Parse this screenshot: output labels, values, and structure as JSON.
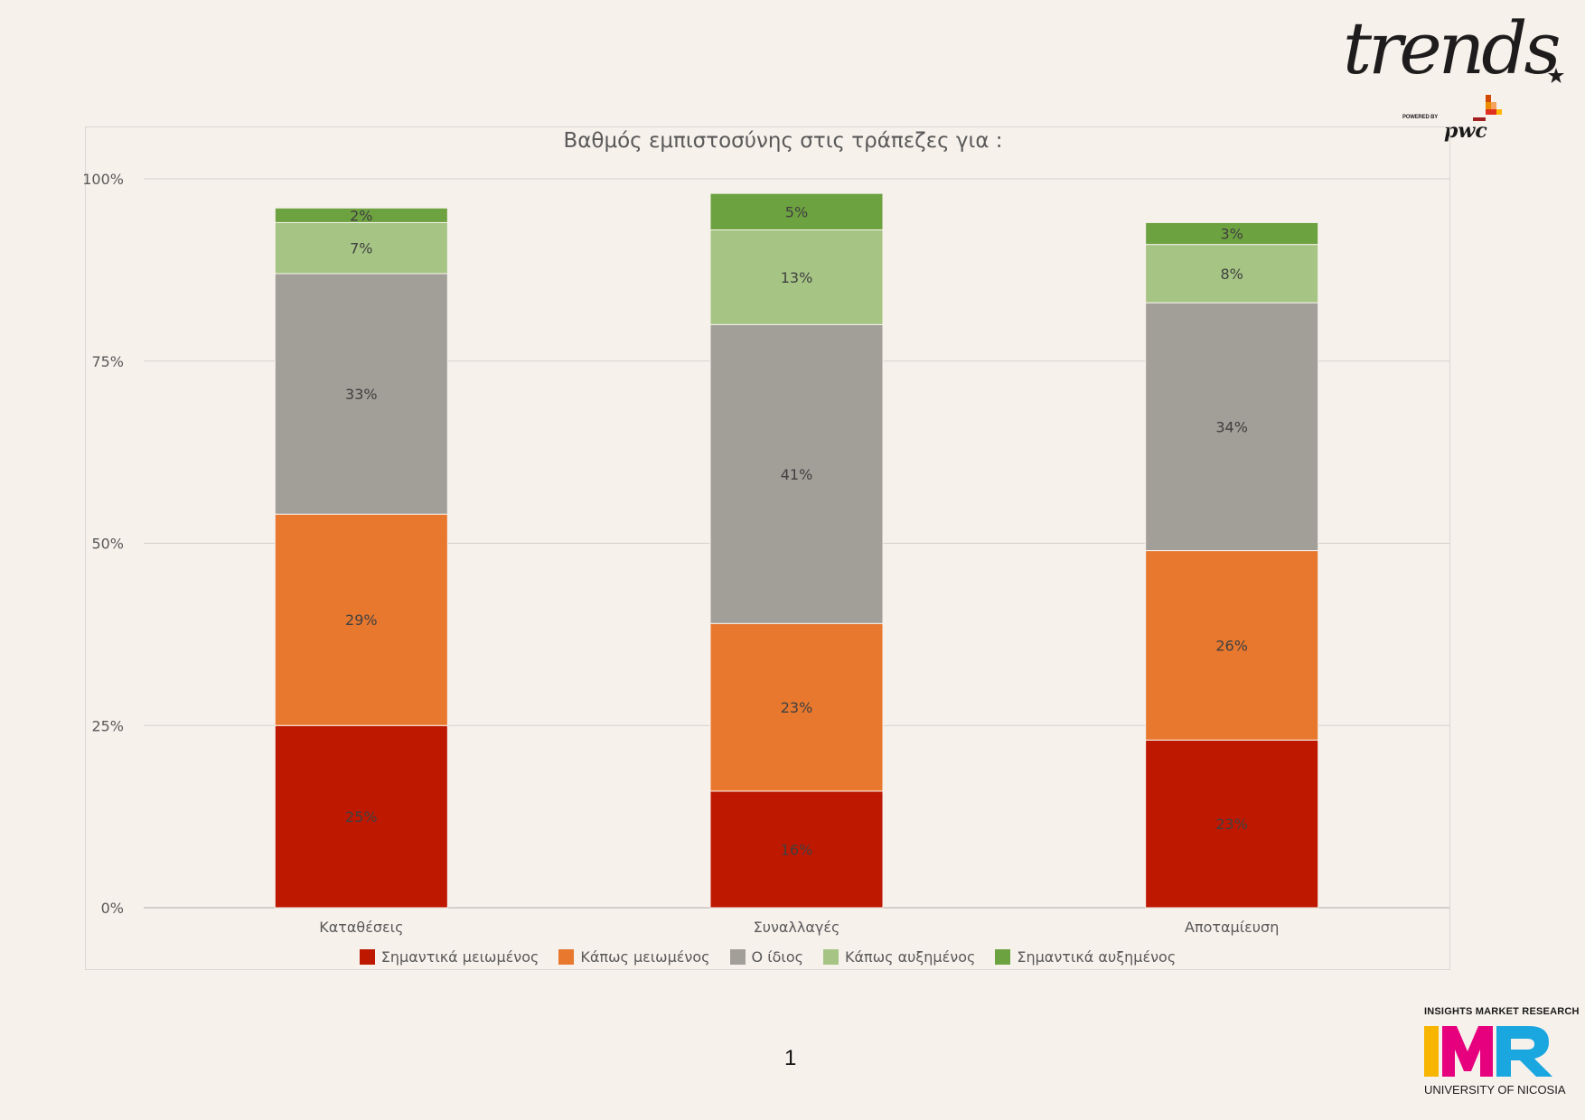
{
  "branding": {
    "trends_logo": "trends",
    "powered_by": "POWERED BY",
    "pwc_logo": "pwc",
    "imr_top": "INSIGHTS MARKET RESEARCH",
    "imr_logo": "IMR",
    "imr_bottom": "UNIVERSITY OF NICOSIA"
  },
  "page_number": "1",
  "chart_data": {
    "type": "bar",
    "stacked": true,
    "title": "Βαθμός εμπιστοσύνης στις τράπεζες για :",
    "xlabel": "",
    "ylabel": "",
    "ylim": [
      0,
      100
    ],
    "yticks": [
      "0%",
      "25%",
      "50%",
      "75%",
      "100%"
    ],
    "grid": true,
    "legend_position": "bottom",
    "categories": [
      "Καταθέσεις",
      "Συναλλαγές",
      "Αποταμίευση"
    ],
    "series": [
      {
        "name": "Σημαντικά μειωμένος",
        "color": "#be1800",
        "values": [
          25,
          16,
          23
        ],
        "labels": [
          "25%",
          "16%",
          "23%"
        ]
      },
      {
        "name": "Κάπως μειωμένος",
        "color": "#e8782e",
        "values": [
          29,
          23,
          26
        ],
        "labels": [
          "29%",
          "23%",
          "26%"
        ]
      },
      {
        "name": "Ο ίδιος",
        "color": "#a29e98",
        "values": [
          33,
          41,
          34
        ],
        "labels": [
          "33%",
          "41%",
          "34%"
        ]
      },
      {
        "name": "Κάπως αυξημένος",
        "color": "#a6c584",
        "values": [
          7,
          13,
          8
        ],
        "labels": [
          "7%",
          "13%",
          "8%"
        ]
      },
      {
        "name": "Σημαντικά αυξημένος",
        "color": "#6da240",
        "values": [
          2,
          5,
          3
        ],
        "labels": [
          "2%",
          "5%",
          "3%"
        ]
      }
    ]
  }
}
